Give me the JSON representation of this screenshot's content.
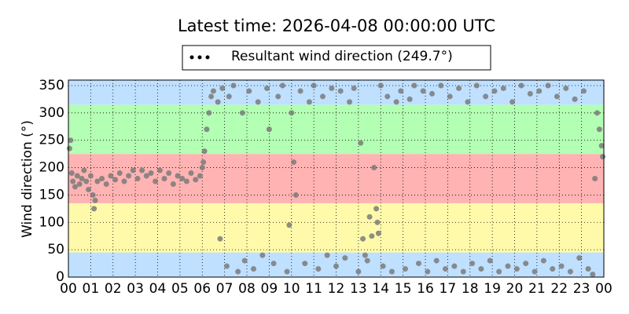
{
  "chart_data": {
    "type": "scatter",
    "title": "Latest time: 2026-04-08 00:00:00 UTC",
    "y_label": "Wind direction (°)",
    "xlim": [
      0,
      24
    ],
    "ylim": [
      0,
      360
    ],
    "xticks": [
      {
        "value": 0,
        "label": "00"
      },
      {
        "value": 1,
        "label": "01"
      },
      {
        "value": 2,
        "label": "02"
      },
      {
        "value": 3,
        "label": "03"
      },
      {
        "value": 4,
        "label": "04"
      },
      {
        "value": 5,
        "label": "05"
      },
      {
        "value": 6,
        "label": "06"
      },
      {
        "value": 7,
        "label": "07"
      },
      {
        "value": 8,
        "label": "08"
      },
      {
        "value": 9,
        "label": "09"
      },
      {
        "value": 10,
        "label": "10"
      },
      {
        "value": 11,
        "label": "11"
      },
      {
        "value": 12,
        "label": "12"
      },
      {
        "value": 13,
        "label": "13"
      },
      {
        "value": 14,
        "label": "14"
      },
      {
        "value": 15,
        "label": "15"
      },
      {
        "value": 16,
        "label": "16"
      },
      {
        "value": 17,
        "label": "17"
      },
      {
        "value": 18,
        "label": "18"
      },
      {
        "value": 19,
        "label": "19"
      },
      {
        "value": 20,
        "label": "20"
      },
      {
        "value": 21,
        "label": "21"
      },
      {
        "value": 22,
        "label": "22"
      },
      {
        "value": 23,
        "label": "23"
      },
      {
        "value": 24,
        "label": "00"
      }
    ],
    "yticks": [
      0,
      50,
      100,
      150,
      200,
      250,
      300,
      350
    ],
    "grid": true,
    "legend": "top",
    "bands": [
      {
        "from": 0,
        "to": 45,
        "color": "#bfe0ff"
      },
      {
        "from": 45,
        "to": 135,
        "color": "#fffaaa"
      },
      {
        "from": 135,
        "to": 225,
        "color": "#ffb3b3"
      },
      {
        "from": 225,
        "to": 315,
        "color": "#b3ffb3"
      },
      {
        "from": 315,
        "to": 360,
        "color": "#bfe0ff"
      }
    ],
    "x": [
      0.05,
      0.1,
      0.15,
      0.2,
      0.3,
      0.4,
      0.5,
      0.6,
      0.7,
      0.8,
      0.9,
      1.0,
      1.1,
      1.15,
      1.2,
      1.3,
      1.5,
      1.7,
      1.9,
      2.1,
      2.3,
      2.5,
      2.7,
      2.9,
      3.1,
      3.3,
      3.5,
      3.7,
      3.9,
      4.1,
      4.3,
      4.5,
      4.7,
      4.9,
      5.1,
      5.3,
      5.5,
      5.7,
      5.9,
      6.0,
      6.05,
      6.1,
      6.2,
      6.3,
      6.4,
      6.5,
      6.7,
      6.8,
      6.9,
      7.1,
      7.2,
      7.4,
      7.6,
      7.8,
      7.9,
      8.1,
      8.3,
      8.5,
      8.7,
      8.9,
      9.0,
      9.2,
      9.4,
      9.6,
      9.8,
      9.9,
      10.0,
      10.1,
      10.2,
      10.4,
      10.6,
      10.8,
      11.0,
      11.2,
      11.4,
      11.6,
      11.8,
      12.0,
      12.2,
      12.4,
      12.6,
      12.8,
      13.0,
      13.1,
      13.2,
      13.3,
      13.4,
      13.5,
      13.6,
      13.7,
      13.8,
      13.85,
      13.9,
      14.0,
      14.1,
      14.3,
      14.5,
      14.7,
      14.9,
      15.1,
      15.3,
      15.5,
      15.7,
      15.9,
      16.1,
      16.3,
      16.5,
      16.7,
      16.9,
      17.1,
      17.3,
      17.5,
      17.7,
      17.9,
      18.1,
      18.3,
      18.5,
      18.7,
      18.9,
      19.1,
      19.3,
      19.5,
      19.7,
      19.9,
      20.1,
      20.3,
      20.5,
      20.7,
      20.9,
      21.1,
      21.3,
      21.5,
      21.7,
      21.9,
      22.1,
      22.3,
      22.5,
      22.7,
      22.9,
      23.1,
      23.3,
      23.5,
      23.6,
      23.7,
      23.8,
      23.9,
      23.95
    ],
    "series": [
      {
        "name": "Resultant wind direction (249.7°)",
        "color": "#7a7a7a",
        "values": [
          235,
          250,
          190,
          175,
          165,
          185,
          170,
          180,
          195,
          175,
          160,
          185,
          150,
          125,
          140,
          175,
          180,
          170,
          185,
          178,
          190,
          175,
          185,
          195,
          180,
          195,
          185,
          190,
          175,
          195,
          180,
          190,
          170,
          185,
          180,
          175,
          190,
          178,
          185,
          200,
          210,
          230,
          270,
          300,
          330,
          340,
          320,
          70,
          345,
          20,
          330,
          350,
          10,
          300,
          30,
          340,
          15,
          320,
          40,
          345,
          270,
          25,
          330,
          350,
          10,
          95,
          300,
          210,
          150,
          340,
          25,
          320,
          350,
          15,
          330,
          40,
          345,
          20,
          340,
          35,
          320,
          345,
          10,
          245,
          70,
          40,
          30,
          110,
          75,
          200,
          125,
          100,
          80,
          350,
          20,
          330,
          10,
          320,
          340,
          15,
          325,
          350,
          25,
          340,
          10,
          335,
          30,
          350,
          15,
          330,
          20,
          345,
          10,
          320,
          25,
          350,
          15,
          330,
          30,
          340,
          10,
          345,
          20,
          320,
          15,
          350,
          25,
          335,
          10,
          340,
          30,
          350,
          15,
          330,
          20,
          345,
          10,
          325,
          35,
          340,
          15,
          5,
          180,
          300,
          270,
          240,
          220
        ]
      }
    ]
  }
}
